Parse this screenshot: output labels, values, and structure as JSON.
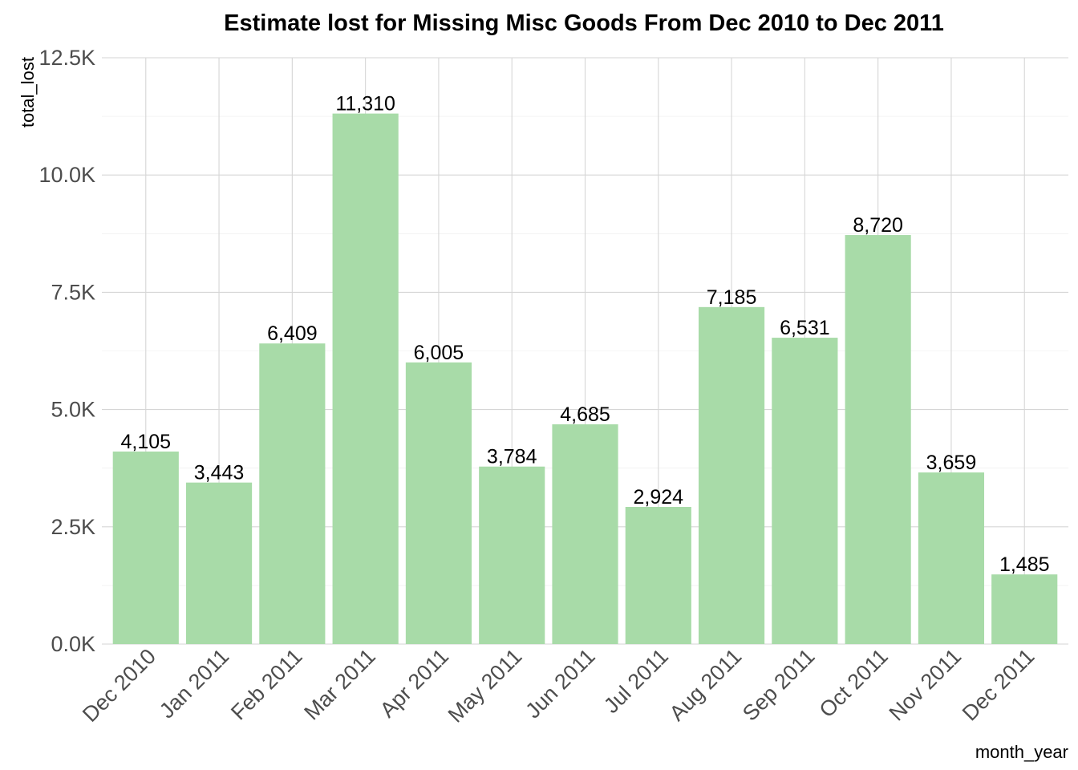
{
  "chart_data": {
    "type": "bar",
    "title": "Estimate lost for Missing Misc Goods From Dec 2010 to Dec 2011",
    "xlabel": "month_year",
    "ylabel": "total_lost",
    "categories": [
      "Dec 2010",
      "Jan 2011",
      "Feb 2011",
      "Mar 2011",
      "Apr 2011",
      "May 2011",
      "Jun 2011",
      "Jul 2011",
      "Aug 2011",
      "Sep 2011",
      "Oct 2011",
      "Nov 2011",
      "Dec 2011"
    ],
    "values": [
      4105,
      3443,
      6409,
      11310,
      6005,
      3784,
      4685,
      2924,
      7185,
      6531,
      8720,
      3659,
      1485
    ],
    "data_labels": [
      "4,105",
      "3,443",
      "6,409",
      "11,310",
      "6,005",
      "3,784",
      "4,685",
      "2,924",
      "7,185",
      "6,531",
      "8,720",
      "3,659",
      "1,485"
    ],
    "ylim": [
      0,
      12500
    ],
    "yticks": [
      0,
      2500,
      5000,
      7500,
      10000,
      12500
    ],
    "ytick_labels": [
      "0.0K",
      "2.5K",
      "5.0K",
      "7.5K",
      "10.0K",
      "12.5K"
    ],
    "grid": true,
    "bar_color": "#a8dba8"
  }
}
